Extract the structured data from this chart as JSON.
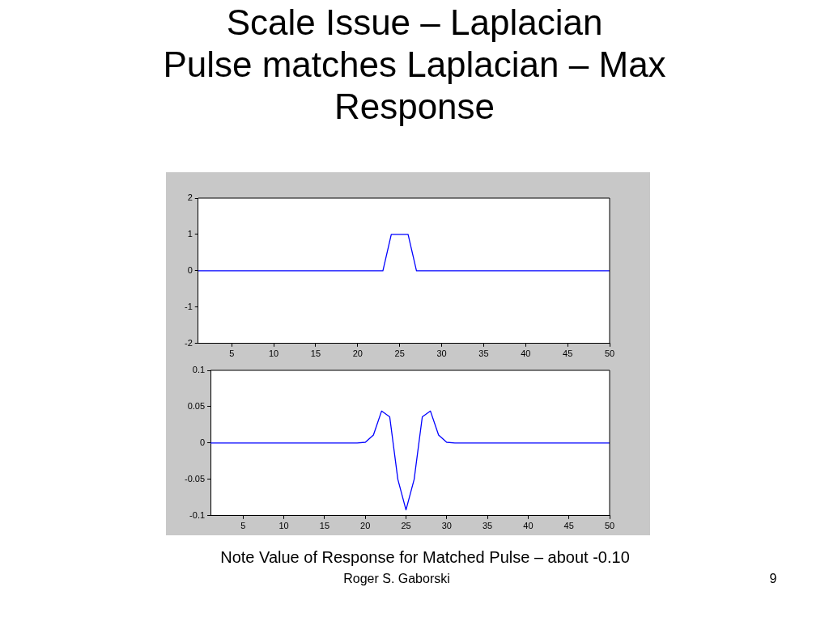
{
  "chart_data": [
    {
      "type": "line",
      "title": "Scale Issue – Laplacian",
      "subtitle": "Pulse matches Laplacian – Max Response",
      "series": [
        {
          "color": "#0000ff",
          "x": [
            1,
            23,
            24,
            26,
            27,
            50
          ],
          "values": [
            0,
            0,
            1,
            1,
            0,
            0
          ]
        }
      ],
      "xlim": [
        1,
        50
      ],
      "xticks": [
        5,
        10,
        15,
        20,
        25,
        30,
        35,
        40,
        45,
        50
      ],
      "ylim": [
        -2,
        2
      ],
      "yticks": [
        -2,
        -1,
        0,
        1,
        2
      ],
      "grid": false,
      "legend": false,
      "marker": "none",
      "line_style": "solid"
    },
    {
      "type": "line",
      "series": [
        {
          "color": "#0000ff",
          "x": [
            1,
            19,
            20,
            21,
            22,
            23,
            24,
            25,
            26,
            27,
            28,
            29,
            30,
            31,
            50
          ],
          "values": [
            0,
            0,
            0.001,
            0.011,
            0.044,
            0.036,
            -0.05,
            -0.092,
            -0.05,
            0.036,
            0.044,
            0.011,
            0.001,
            0,
            0
          ]
        }
      ],
      "xlim": [
        1,
        50
      ],
      "xticks": [
        5,
        10,
        15,
        20,
        25,
        30,
        35,
        40,
        45,
        50
      ],
      "ylim": [
        -0.1,
        0.1
      ],
      "yticks": [
        -0.1,
        -0.05,
        0,
        0.05,
        0.1
      ],
      "grid": false,
      "legend": false,
      "marker": "none",
      "line_style": "solid",
      "annotations": [
        "Note Value of Response for Matched Pulse – about -0.10",
        "Roger S. Gaborski",
        "9"
      ]
    }
  ]
}
